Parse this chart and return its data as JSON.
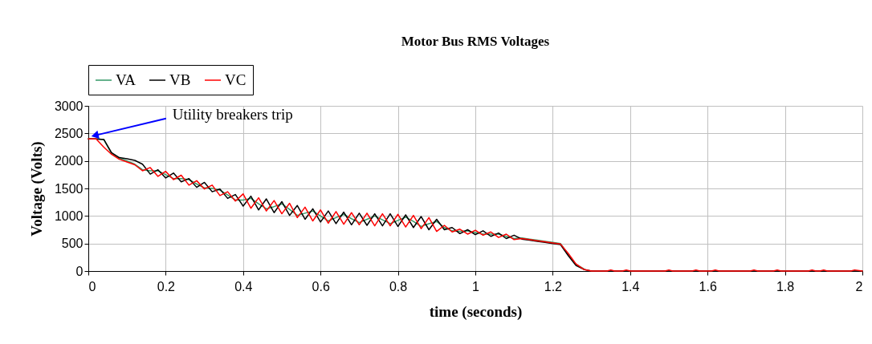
{
  "chart_data": {
    "type": "line",
    "title": "Motor Bus RMS Voltages",
    "xlabel": "time (seconds)",
    "ylabel": "Voltage (Volts)",
    "x": [
      0,
      0.02,
      0.04,
      0.06,
      0.08,
      0.1,
      0.12,
      0.14,
      0.16,
      0.18,
      0.2,
      0.22,
      0.24,
      0.26,
      0.28,
      0.3,
      0.32,
      0.34,
      0.36,
      0.38,
      0.4,
      0.42,
      0.44,
      0.46,
      0.48,
      0.5,
      0.52,
      0.54,
      0.56,
      0.58,
      0.6,
      0.62,
      0.64,
      0.66,
      0.68,
      0.7,
      0.72,
      0.74,
      0.76,
      0.78,
      0.8,
      0.82,
      0.84,
      0.86,
      0.88,
      0.9,
      0.92,
      0.94,
      0.96,
      0.98,
      1,
      1.02,
      1.04,
      1.06,
      1.08,
      1.1,
      1.12,
      1.14,
      1.16,
      1.18,
      1.2,
      1.22,
      1.24,
      1.26,
      1.28,
      1.3,
      2
    ],
    "series": [
      {
        "name": "VA",
        "color": "#339966",
        "values": [
          2400,
          2400,
          2390,
          2130,
          2050,
          2000,
          1940,
          1840,
          1820,
          1820,
          1750,
          1680,
          1680,
          1660,
          1580,
          1510,
          1500,
          1470,
          1380,
          1290,
          1290,
          1320,
          1220,
          1130,
          1170,
          1220,
          1120,
          1010,
          1050,
          1090,
          1000,
          910,
          970,
          1030,
          950,
          880,
          940,
          1000,
          930,
          860,
          920,
          980,
          900,
          810,
          860,
          900,
          790,
          730,
          720,
          730,
          700,
          670,
          670,
          670,
          630,
          590,
          600,
          580,
          560,
          540,
          520,
          500,
          300,
          120,
          40,
          null,
          null
        ]
      },
      {
        "name": "VB",
        "color": "#000000",
        "values": [
          2400,
          2400,
          2390,
          2150,
          2060,
          2040,
          2010,
          1940,
          1760,
          1840,
          1690,
          1780,
          1620,
          1680,
          1520,
          1610,
          1440,
          1490,
          1320,
          1390,
          1180,
          1360,
          1110,
          1310,
          1060,
          1260,
          1010,
          1190,
          940,
          1130,
          890,
          1090,
          860,
          1070,
          840,
          1050,
          830,
          1040,
          820,
          1040,
          810,
          1020,
          790,
          990,
          750,
          940,
          750,
          790,
          680,
          750,
          660,
          730,
          630,
          690,
          590,
          650,
          580,
          560,
          540,
          520,
          500,
          480,
          280,
          100,
          30,
          0,
          0
        ]
      },
      {
        "name": "VC",
        "color": "#ff0000",
        "x": [
          0,
          0.02,
          0.04,
          0.06,
          0.08,
          0.1,
          0.12,
          0.14,
          0.16,
          0.18,
          0.2,
          0.22,
          0.24,
          0.26,
          0.28,
          0.3,
          0.32,
          0.34,
          0.36,
          0.38,
          0.4,
          0.42,
          0.44,
          0.46,
          0.48,
          0.5,
          0.52,
          0.54,
          0.56,
          0.58,
          0.6,
          0.62,
          0.64,
          0.66,
          0.68,
          0.7,
          0.72,
          0.74,
          0.76,
          0.78,
          0.8,
          0.82,
          0.84,
          0.86,
          0.88,
          0.9,
          0.92,
          0.94,
          0.96,
          0.98,
          1,
          1.02,
          1.04,
          1.06,
          1.08,
          1.1,
          1.12,
          1.14,
          1.16,
          1.18,
          1.2,
          1.22,
          1.24,
          1.26,
          1.28,
          1.3,
          1.34,
          1.35,
          1.36,
          1.38,
          1.39,
          1.4,
          1.49,
          1.5,
          1.51,
          1.56,
          1.57,
          1.58,
          1.61,
          1.62,
          1.63,
          1.71,
          1.72,
          1.73,
          1.77,
          1.78,
          1.79,
          1.86,
          1.87,
          1.88,
          1.89,
          1.9,
          1.91,
          1.97,
          1.98,
          2
        ],
        "values": [
          2400,
          2400,
          2250,
          2120,
          2030,
          1980,
          1930,
          1820,
          1880,
          1720,
          1810,
          1660,
          1740,
          1560,
          1640,
          1490,
          1560,
          1370,
          1440,
          1270,
          1400,
          1140,
          1330,
          1090,
          1280,
          1040,
          1230,
          970,
          1160,
          910,
          1110,
          870,
          1080,
          850,
          1060,
          840,
          1050,
          820,
          1040,
          820,
          1030,
          800,
          1010,
          770,
          970,
          720,
          830,
          710,
          760,
          670,
          740,
          650,
          710,
          610,
          670,
          570,
          590,
          570,
          550,
          530,
          510,
          490,
          320,
          130,
          30,
          0,
          0,
          20,
          0,
          0,
          20,
          0,
          0,
          20,
          0,
          0,
          20,
          0,
          0,
          20,
          0,
          0,
          20,
          0,
          0,
          20,
          0,
          0,
          20,
          0,
          0,
          20,
          0,
          0,
          20,
          0
        ]
      }
    ],
    "xlim": [
      0,
      2
    ],
    "xticks": [
      0,
      0.2,
      0.4,
      0.6,
      0.8,
      1,
      1.2,
      1.4,
      1.6,
      1.8,
      2
    ],
    "ylim": [
      0,
      3000
    ],
    "yticks": [
      0,
      500,
      1000,
      1500,
      2000,
      2500,
      3000
    ],
    "grid": true,
    "legend": "top",
    "marker": "none",
    "line_style": "solid",
    "annotations": [
      {
        "text": "Utility breakers trip",
        "x": 0.01,
        "y": 2450
      }
    ]
  }
}
